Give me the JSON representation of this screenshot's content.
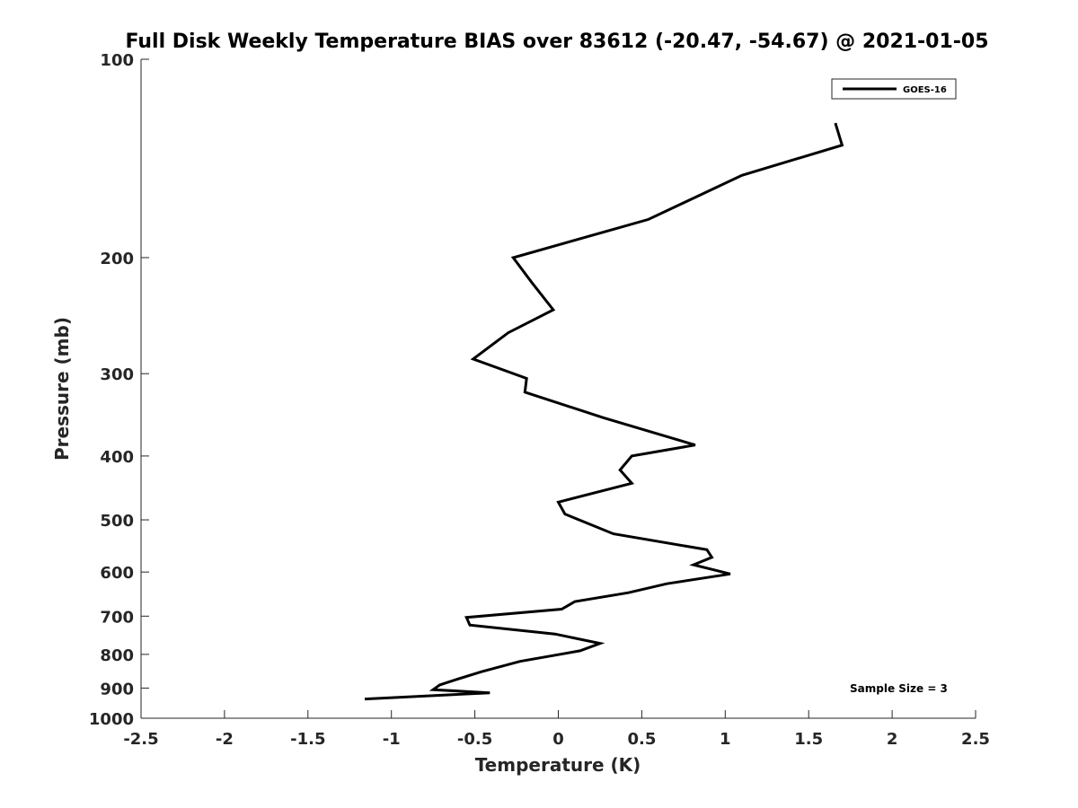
{
  "chart_data": {
    "type": "line",
    "title": "Full Disk Weekly Temperature BIAS over 83612 (-20.47, -54.67) @ 2021-01-05",
    "xlabel": "Temperature (K)",
    "ylabel": "Pressure (mb)",
    "xlim": [
      -2.5,
      2.5
    ],
    "ylim": [
      100,
      1000
    ],
    "y_scale": "log",
    "y_reversed": true,
    "grid": false,
    "legend_position": "top-right",
    "x_ticks": [
      -2.5,
      -2,
      -1.5,
      -1,
      -0.5,
      0,
      0.5,
      1,
      1.5,
      2,
      2.5
    ],
    "x_tick_labels": [
      "-2.5",
      "-2",
      "-1.5",
      "-1",
      "-0.5",
      "0",
      "0.5",
      "1",
      "1.5",
      "2",
      "2.5"
    ],
    "y_ticks": [
      100,
      200,
      300,
      400,
      500,
      600,
      700,
      800,
      900,
      1000
    ],
    "y_tick_labels": [
      "100",
      "200",
      "300",
      "400",
      "500",
      "600",
      "700",
      "800",
      "900",
      "1000"
    ],
    "series": [
      {
        "name": "GOES-16",
        "color": "#000000",
        "points": [
          [
            1.66,
            125
          ],
          [
            1.7,
            135
          ],
          [
            1.1,
            150
          ],
          [
            0.54,
            175
          ],
          [
            -0.27,
            200
          ],
          [
            -0.16,
            218
          ],
          [
            -0.03,
            240
          ],
          [
            -0.3,
            260
          ],
          [
            -0.51,
            285
          ],
          [
            -0.19,
            305
          ],
          [
            -0.2,
            320
          ],
          [
            0.27,
            350
          ],
          [
            0.82,
            385
          ],
          [
            0.44,
            400
          ],
          [
            0.37,
            420
          ],
          [
            0.44,
            440
          ],
          [
            0.0,
            470
          ],
          [
            0.04,
            490
          ],
          [
            0.33,
            525
          ],
          [
            0.89,
            555
          ],
          [
            0.92,
            570
          ],
          [
            0.81,
            585
          ],
          [
            1.03,
            604
          ],
          [
            0.65,
            625
          ],
          [
            0.42,
            645
          ],
          [
            0.1,
            665
          ],
          [
            0.02,
            683
          ],
          [
            -0.55,
            703
          ],
          [
            -0.53,
            722
          ],
          [
            -0.02,
            745
          ],
          [
            0.25,
            770
          ],
          [
            0.13,
            790
          ],
          [
            -0.23,
            820
          ],
          [
            -0.46,
            850
          ],
          [
            -0.62,
            875
          ],
          [
            -0.71,
            890
          ],
          [
            -0.75,
            905
          ],
          [
            -0.41,
            915
          ],
          [
            -1.16,
            935
          ]
        ]
      }
    ],
    "annotation": "Sample Size = 3"
  }
}
